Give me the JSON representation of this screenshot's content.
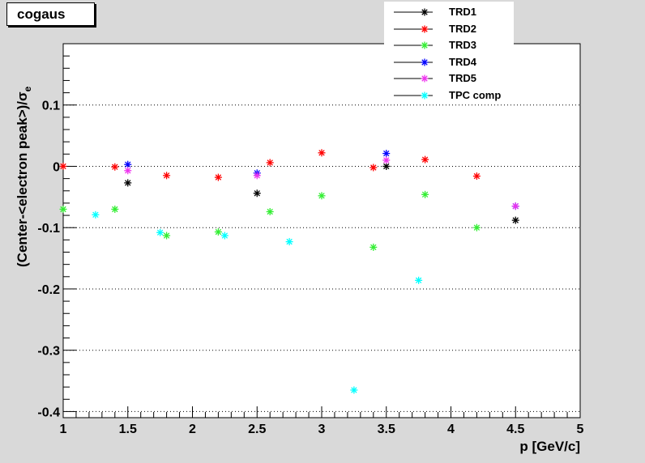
{
  "title": "cogaus",
  "chart_data": {
    "type": "scatter",
    "xlabel": "p [GeV/c]",
    "ylabel": "(Center-<electron peak>)/σe",
    "ylabel_main": "(Center-<electron peak>)/σ",
    "ylabel_sub": "e",
    "xlim": [
      1,
      5
    ],
    "ylim": [
      -0.41,
      0.2
    ],
    "x_ticks": [
      "1",
      "1.5",
      "2",
      "2.5",
      "3",
      "3.5",
      "4",
      "4.5",
      "5"
    ],
    "x_tick_values": [
      1,
      1.5,
      2,
      2.5,
      3,
      3.5,
      4,
      4.5,
      5
    ],
    "y_ticks": [
      "0.1",
      "0",
      "-0.1",
      "-0.2",
      "-0.3",
      "-0.4"
    ],
    "y_tick_values": [
      0.1,
      0,
      -0.1,
      -0.2,
      -0.3,
      -0.4
    ],
    "y_grid": true,
    "marker": "*",
    "legend_position": "top-right",
    "series": [
      {
        "name": "TRD1",
        "color": "#000000",
        "x": [
          1.5,
          2.5,
          3.5,
          4.5
        ],
        "y": [
          -0.027,
          -0.044,
          0.0,
          -0.088
        ]
      },
      {
        "name": "TRD2",
        "color": "#ff0000",
        "x": [
          1.0,
          1.4,
          1.8,
          2.2,
          2.6,
          3.0,
          3.4,
          3.8,
          4.2
        ],
        "y": [
          0.0,
          -0.001,
          -0.015,
          -0.018,
          0.006,
          0.022,
          -0.002,
          0.011,
          -0.016
        ]
      },
      {
        "name": "TRD3",
        "color": "#33ee33",
        "x": [
          1.0,
          1.4,
          1.8,
          2.2,
          2.6,
          3.0,
          3.4,
          3.8,
          4.2
        ],
        "y": [
          -0.07,
          -0.07,
          -0.113,
          -0.107,
          -0.074,
          -0.048,
          -0.132,
          -0.046,
          -0.1
        ]
      },
      {
        "name": "TRD4",
        "color": "#0000ff",
        "x": [
          1.5,
          2.5,
          3.5,
          4.5
        ],
        "y": [
          0.003,
          -0.011,
          0.021,
          -0.065
        ]
      },
      {
        "name": "TRD5",
        "color": "#ee33ee",
        "x": [
          1.5,
          2.5,
          3.5,
          4.5
        ],
        "y": [
          -0.007,
          -0.015,
          0.01,
          -0.065
        ]
      },
      {
        "name": "TPC comp",
        "color": "#00ffff",
        "x": [
          1.25,
          1.75,
          2.25,
          2.75,
          3.25,
          3.75
        ],
        "y": [
          -0.079,
          -0.108,
          -0.113,
          -0.123,
          -0.365,
          -0.186
        ]
      }
    ]
  }
}
